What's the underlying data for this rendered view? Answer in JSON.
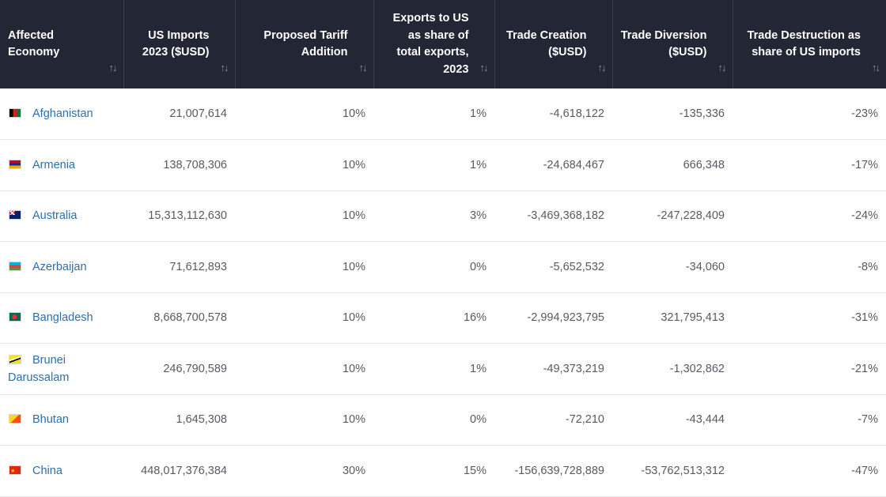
{
  "columns": [
    {
      "label": "Affected Economy",
      "align": "left"
    },
    {
      "label": "US Imports 2023 ($USD)",
      "align": "right"
    },
    {
      "label": "Proposed Tariff Addition",
      "align": "right"
    },
    {
      "label": "Exports to US as share of total exports, 2023",
      "align": "right"
    },
    {
      "label": "Trade Creation ($USD)",
      "align": "right"
    },
    {
      "label": "Trade Diversion ($USD)",
      "align": "right"
    },
    {
      "label": "Trade Destruction as share of US imports",
      "align": "right"
    }
  ],
  "sort_glyph": "↑↓",
  "rows": [
    {
      "flag": "af",
      "flag_icon": "afghanistan-flag-icon",
      "country": "Afghanistan",
      "imports": "21,007,614",
      "tariff": "10%",
      "share": "1%",
      "creation": "-4,618,122",
      "diversion": "-135,336",
      "destruction": "-23%"
    },
    {
      "flag": "am",
      "flag_icon": "armenia-flag-icon",
      "country": "Armenia",
      "imports": "138,708,306",
      "tariff": "10%",
      "share": "1%",
      "creation": "-24,684,467",
      "diversion": "666,348",
      "destruction": "-17%"
    },
    {
      "flag": "au",
      "flag_icon": "australia-flag-icon",
      "country": "Australia",
      "imports": "15,313,112,630",
      "tariff": "10%",
      "share": "3%",
      "creation": "-3,469,368,182",
      "diversion": "-247,228,409",
      "destruction": "-24%"
    },
    {
      "flag": "az",
      "flag_icon": "azerbaijan-flag-icon",
      "country": "Azerbaijan",
      "imports": "71,612,893",
      "tariff": "10%",
      "share": "0%",
      "creation": "-5,652,532",
      "diversion": "-34,060",
      "destruction": "-8%"
    },
    {
      "flag": "bd",
      "flag_icon": "bangladesh-flag-icon",
      "country": "Bangladesh",
      "imports": "8,668,700,578",
      "tariff": "10%",
      "share": "16%",
      "creation": "-2,994,923,795",
      "diversion": "321,795,413",
      "destruction": "-31%"
    },
    {
      "flag": "bn",
      "flag_icon": "brunei-flag-icon",
      "country": "Brunei Darussalam",
      "imports": "246,790,589",
      "tariff": "10%",
      "share": "1%",
      "creation": "-49,373,219",
      "diversion": "-1,302,862",
      "destruction": "-21%"
    },
    {
      "flag": "bt",
      "flag_icon": "bhutan-flag-icon",
      "country": "Bhutan",
      "imports": "1,645,308",
      "tariff": "10%",
      "share": "0%",
      "creation": "-72,210",
      "diversion": "-43,444",
      "destruction": "-7%"
    },
    {
      "flag": "cn",
      "flag_icon": "china-flag-icon",
      "country": "China",
      "imports": "448,017,376,384",
      "tariff": "30%",
      "share": "15%",
      "creation": "-156,639,728,889",
      "diversion": "-53,762,513,312",
      "destruction": "-47%"
    }
  ]
}
